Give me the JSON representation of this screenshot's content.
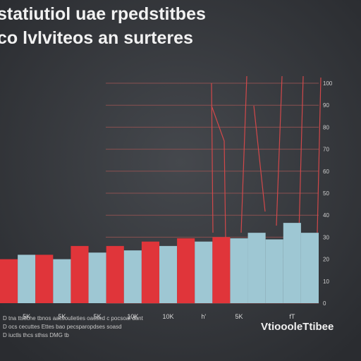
{
  "chart_data": {
    "type": "bar",
    "title": "statiutiol uae rpedstitbes",
    "subtitle": "co lvlviteos an surteres",
    "categories": [
      null,
      "5K",
      null,
      "5K",
      null,
      "5K",
      null,
      "10K",
      null,
      "10K",
      null,
      "h'",
      null,
      "5K",
      null,
      null,
      "fT",
      null
    ],
    "values": [
      20,
      22,
      22,
      20,
      26,
      23,
      26,
      24,
      28,
      26,
      29.5,
      28,
      30,
      29.5,
      32,
      29,
      36.5,
      32
    ],
    "colors": [
      "#e0353a",
      "#9ec7d3",
      "#e0353a",
      "#9ec7d3",
      "#e0353a",
      "#9ec7d3",
      "#e0353a",
      "#9ec7d3",
      "#e0353a",
      "#9ec7d3",
      "#e0353a",
      "#9ec7d3",
      "#e0353a",
      "#9ec7d3",
      "#9ec7d3",
      "#9ec7d3",
      "#9ec7d3",
      "#9ec7d3"
    ],
    "ylim": [
      0,
      100
    ],
    "yticks": [
      0,
      10,
      20,
      30,
      40,
      50,
      60,
      70,
      80,
      90,
      100
    ],
    "grid": true,
    "grid_color": "#8a5050",
    "notes": [
      "D tna ttstiche tbnos aacsoulieties oacsed c pocsoal dant",
      "D ocs cecuttes Ettes bao pecsparopdses soasd",
      "D iuctls thcs sthss DMG tb"
    ],
    "watermark": "VtioooleTtibee"
  }
}
